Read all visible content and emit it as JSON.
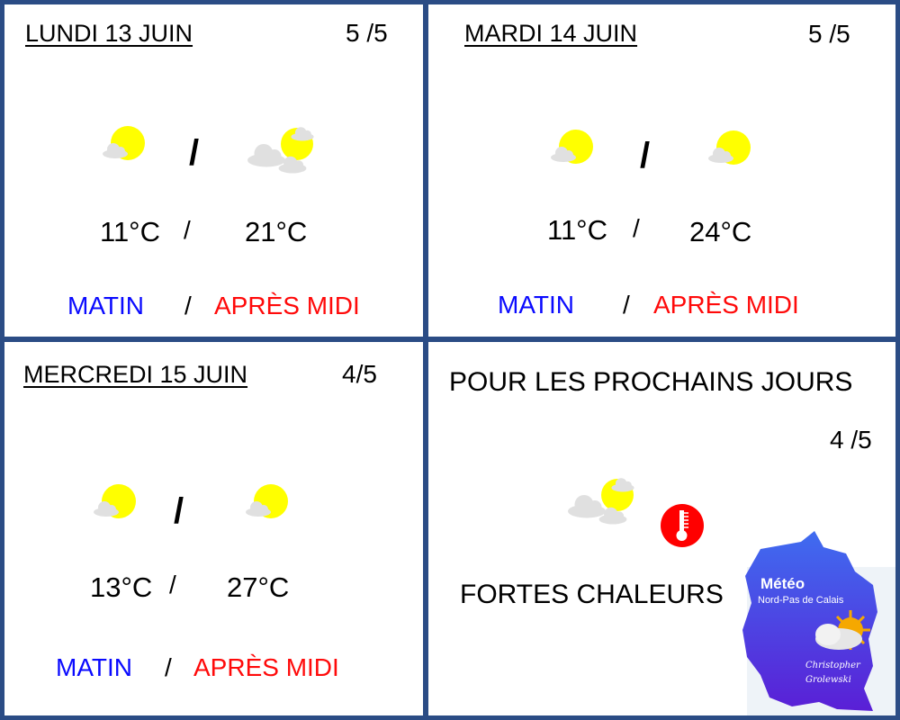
{
  "days": [
    {
      "title": "LUNDI 13 JUIN",
      "rating": "5 /5",
      "morning_icon": "sun-small-cloud-icon",
      "afternoon_icon": "sun-clouds-icon",
      "temp_morning": "11°C",
      "temp_afternoon": "21°C",
      "sep": "/",
      "label_morning": "MATIN",
      "label_afternoon": "APRÈS MIDI"
    },
    {
      "title": "MARDI 14 JUIN",
      "rating": "5 /5",
      "morning_icon": "sun-small-cloud-icon",
      "afternoon_icon": "sun-small-cloud-icon",
      "temp_morning": "11°C",
      "temp_afternoon": "24°C",
      "sep": "/",
      "label_morning": "MATIN",
      "label_afternoon": "APRÈS MIDI"
    },
    {
      "title": "MERCREDI 15 JUIN",
      "rating": "4/5",
      "morning_icon": "sun-small-cloud-icon",
      "afternoon_icon": "sun-small-cloud-icon",
      "temp_morning": "13°C",
      "temp_afternoon": "27°C",
      "sep": "/",
      "label_morning": "MATIN",
      "label_afternoon": "APRÈS MIDI"
    }
  ],
  "outlook": {
    "title": "POUR LES PROCHAINS JOURS",
    "rating": "4 /5",
    "icon": "sun-clouds-icon",
    "alert_icon": "thermometer-icon",
    "alert": "FORTES CHALEURS"
  },
  "logo": {
    "title": "Météo",
    "subtitle": "Nord-Pas de Calais",
    "author": "Christopher Grolewski"
  },
  "colors": {
    "border": "#2b4c85",
    "morning": "#0a0aff",
    "afternoon": "#ff0a0a",
    "sun": "#ffff00",
    "cloud": "#e0e0e0",
    "alert": "#ff0000"
  }
}
